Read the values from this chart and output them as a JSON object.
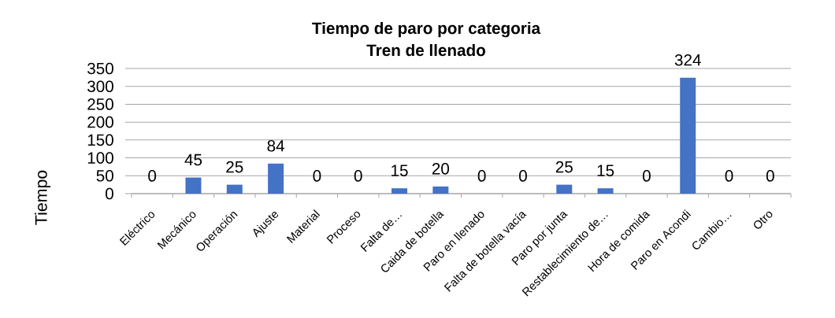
{
  "chart_data": {
    "type": "bar",
    "title": "Tiempo de paro por categoria",
    "subtitle": "Tren de llenado",
    "ylabel": "Tiempo",
    "categories": [
      "Eléctrico",
      "Mecánico",
      "Operación",
      "Ajuste",
      "Material",
      "Proceso",
      "Falta de…",
      "Caida de botella",
      "Paro en llenado",
      "Falta de botella vacía",
      "Paro por junta",
      "Restablecimiento de…",
      "Hora de comida",
      "Paro en Acondi",
      "Cambio…",
      "Otro"
    ],
    "values": [
      0,
      45,
      25,
      84,
      0,
      0,
      15,
      20,
      0,
      0,
      25,
      15,
      0,
      324,
      0,
      0
    ],
    "color": "#4472c4",
    "ylim": [
      0,
      350
    ],
    "yticks": [
      0,
      50,
      100,
      150,
      200,
      250,
      300,
      350
    ],
    "grid": "y",
    "data_labels": true
  }
}
